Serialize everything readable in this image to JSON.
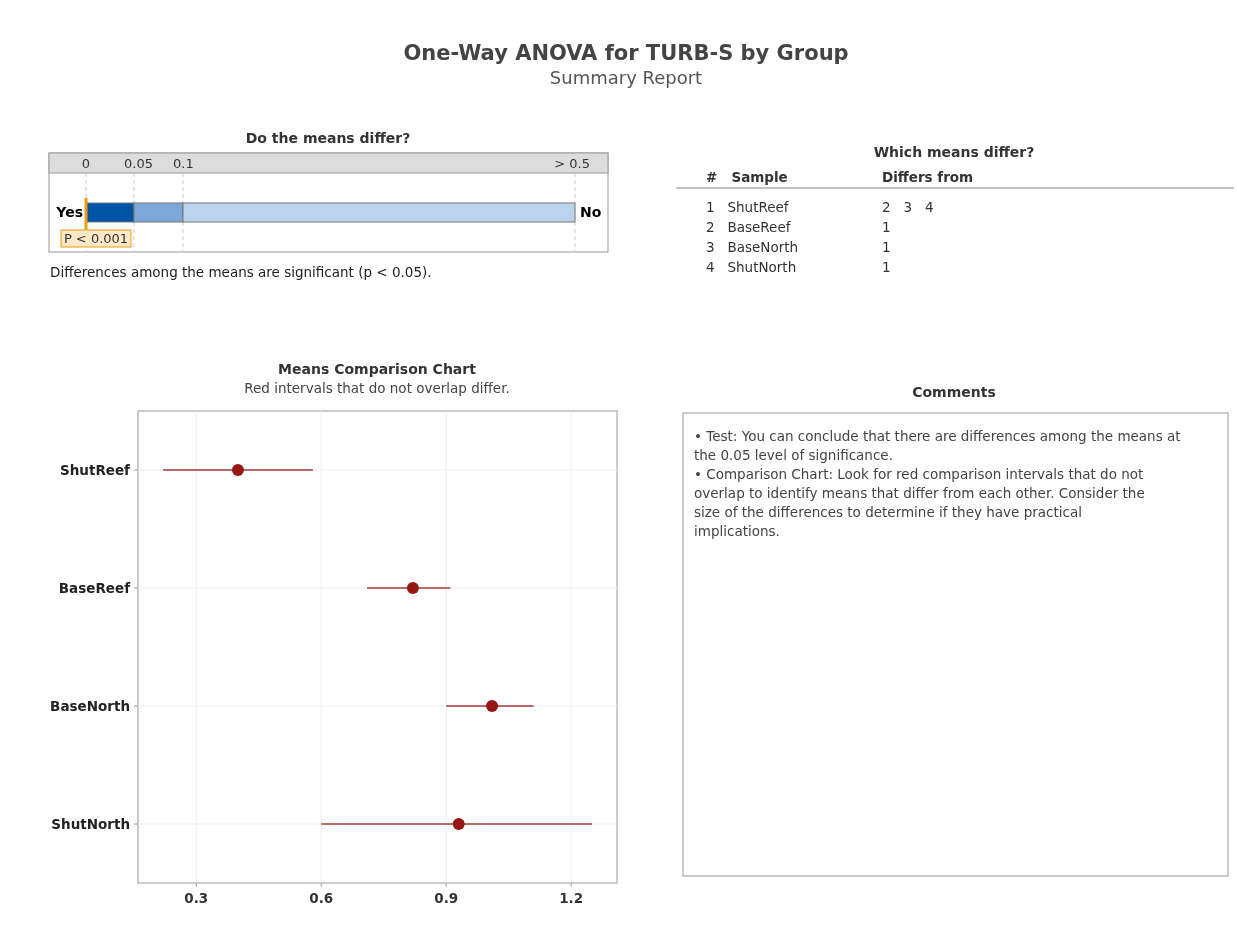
{
  "chart_data": [
    {
      "type": "other",
      "title": "One-Way ANOVA for TURB-S by Group",
      "subtitle": "Summary Report"
    },
    {
      "type": "other",
      "title": "Do the means differ?",
      "annotations": [
        "0",
        "0.05",
        "0.1",
        "> 0.5",
        "Yes",
        "No",
        "P < 0.001",
        "Differences among the means are significant (p < 0.05)."
      ]
    },
    {
      "type": "other",
      "title": "Which means differ?",
      "annotations": [
        "#   Sample",
        "Differs from",
        "1   ShutReef",
        "2   3   4",
        "2   BaseReef",
        "1",
        "3   BaseNorth",
        "1",
        "4   ShutNorth",
        "1"
      ]
    },
    {
      "type": "scatter",
      "title": "Means Comparison Chart",
      "subtitle": "Red intervals that do not overlap differ.",
      "orientation": "horizontal",
      "categories": [
        "ShutReef",
        "BaseReef",
        "BaseNorth",
        "ShutNorth"
      ],
      "values": [
        0.4,
        0.82,
        1.01,
        0.93
      ],
      "errors": [
        [
          0.22,
          0.58
        ],
        [
          0.71,
          0.91
        ],
        [
          0.9,
          1.11
        ],
        [
          0.6,
          1.25
        ]
      ],
      "color": "#961616",
      "marker": "circle",
      "grid": true,
      "xlim": [
        0.16,
        1.31
      ],
      "xticks": [
        0.3,
        0.6,
        0.9,
        1.2
      ]
    },
    {
      "type": "other",
      "title": "Comments",
      "annotations": [
        "• Test: You can conclude that there are differences among the means at the 0.05 level of significance.",
        "• Comparison Chart: Look for red comparison intervals that do not overlap to identify means that differ from each other. Consider the size of the differences to determine if they have practical implications."
      ]
    }
  ]
}
